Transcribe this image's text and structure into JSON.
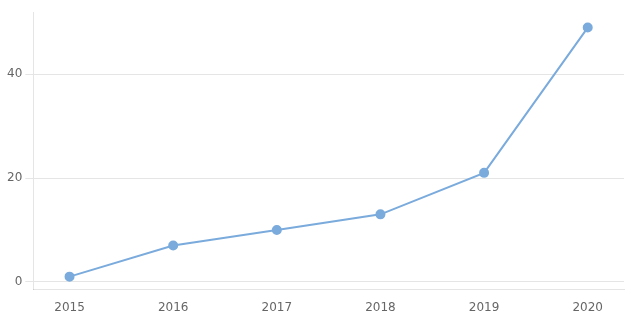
{
  "chart_data": {
    "type": "line",
    "x": [
      2015,
      2016,
      2017,
      2018,
      2019,
      2020
    ],
    "values": [
      1,
      7,
      10,
      13,
      21,
      49
    ],
    "color": "#7aabdc",
    "marker": "circle",
    "xlim": [
      2014.65,
      2020.35
    ],
    "xticks": [
      2015,
      2016,
      2017,
      2018,
      2019,
      2020
    ],
    "ylim": [
      -1.5,
      52
    ],
    "yticks": [
      0,
      20,
      40
    ],
    "grid": "y"
  }
}
